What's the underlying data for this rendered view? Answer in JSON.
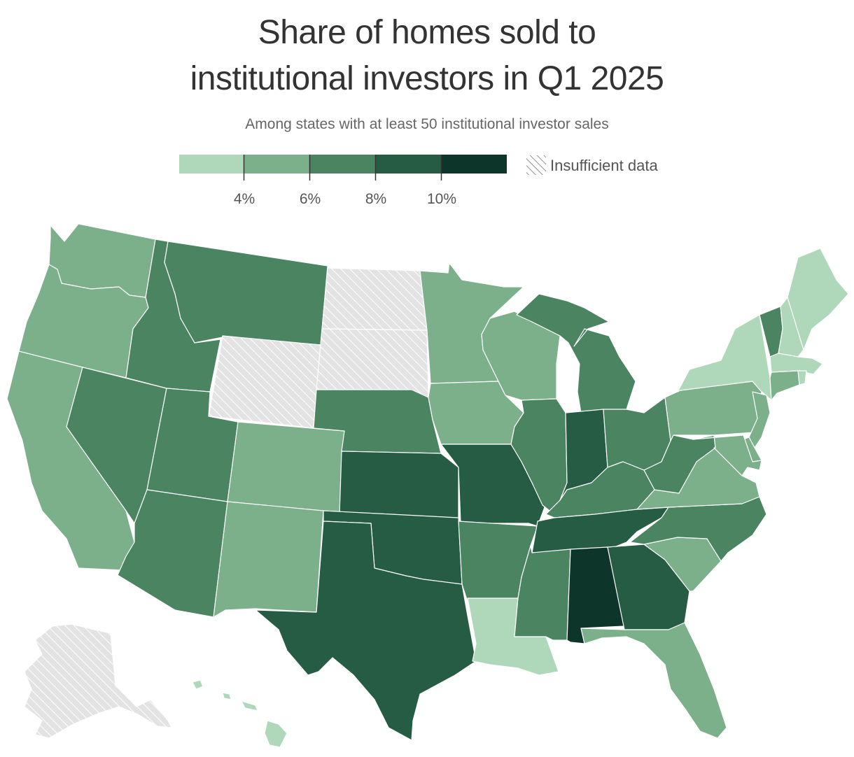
{
  "title_line1": "Share of homes sold to",
  "title_line2": "institutional investors in Q1 2025",
  "subtitle": "Among states with at least 50 institutional investor sales",
  "legend": {
    "bins": [
      {
        "color": "#afd8bb"
      },
      {
        "color": "#7bb08a"
      },
      {
        "color": "#4a8461"
      },
      {
        "color": "#265c43"
      },
      {
        "color": "#0e3529"
      }
    ],
    "ticks": [
      "4%",
      "6%",
      "8%",
      "10%"
    ],
    "no_data_label": "Insufficient data",
    "no_data_color": "#e3e3e3"
  },
  "states": {
    "WA": {
      "bin": 1
    },
    "OR": {
      "bin": 1
    },
    "CA": {
      "bin": 1
    },
    "NV": {
      "bin": 2
    },
    "ID": {
      "bin": 2
    },
    "MT": {
      "bin": 2
    },
    "WY": {
      "bin": null
    },
    "UT": {
      "bin": 2
    },
    "AZ": {
      "bin": 2
    },
    "CO": {
      "bin": 1
    },
    "NM": {
      "bin": 1
    },
    "ND": {
      "bin": null
    },
    "SD": {
      "bin": null
    },
    "NE": {
      "bin": 2
    },
    "KS": {
      "bin": 3
    },
    "OK": {
      "bin": 3
    },
    "TX": {
      "bin": 3
    },
    "MN": {
      "bin": 1
    },
    "IA": {
      "bin": 1
    },
    "MO": {
      "bin": 3
    },
    "AR": {
      "bin": 2
    },
    "LA": {
      "bin": 0
    },
    "WI": {
      "bin": 1
    },
    "IL": {
      "bin": 2
    },
    "MI": {
      "bin": 2
    },
    "IN": {
      "bin": 3
    },
    "OH": {
      "bin": 2
    },
    "KY": {
      "bin": 2
    },
    "TN": {
      "bin": 3
    },
    "MS": {
      "bin": 2
    },
    "AL": {
      "bin": 4
    },
    "GA": {
      "bin": 3
    },
    "FL": {
      "bin": 1
    },
    "SC": {
      "bin": 1
    },
    "NC": {
      "bin": 2
    },
    "VA": {
      "bin": 1
    },
    "WV": {
      "bin": 2
    },
    "PA": {
      "bin": 1
    },
    "NY": {
      "bin": 0
    },
    "VT": {
      "bin": 2
    },
    "NH": {
      "bin": 0
    },
    "ME": {
      "bin": 0
    },
    "MA": {
      "bin": 0
    },
    "CT": {
      "bin": 1
    },
    "RI": {
      "bin": 0
    },
    "NJ": {
      "bin": 1
    },
    "DE": {
      "bin": 1
    },
    "MD": {
      "bin": 1
    },
    "AK": {
      "bin": null
    },
    "HI": {
      "bin": 0
    }
  }
}
